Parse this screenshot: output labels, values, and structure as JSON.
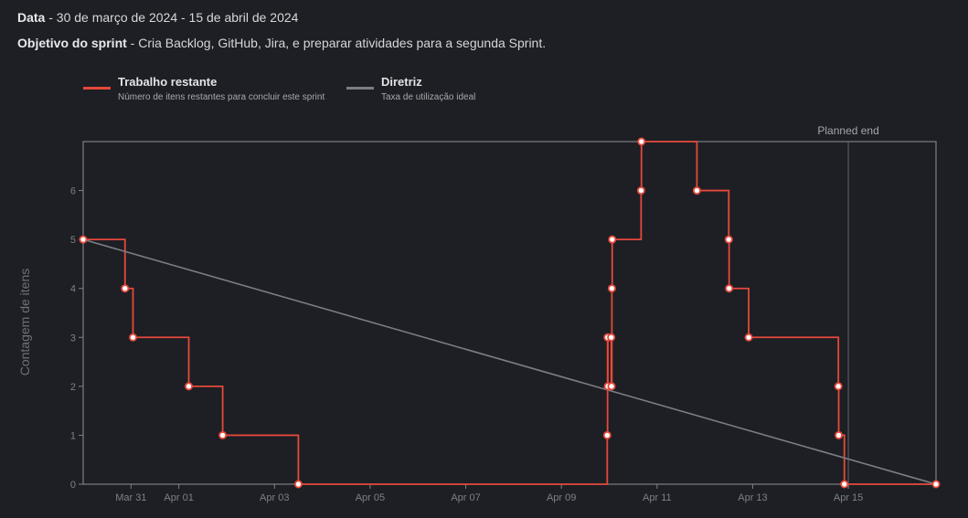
{
  "header": {
    "date_label": "Data",
    "date_value": " - 30 de março de 2024 - 15 de abril de 2024",
    "goal_label": "Objetivo do sprint",
    "goal_value": " - Cria Backlog, GitHub, Jira, e preparar atividades para a segunda Sprint."
  },
  "legend": [
    {
      "title": "Trabalho restante",
      "description": "Número de itens restantes para concluir este sprint",
      "color": "#e5483b"
    },
    {
      "title": "Diretriz",
      "description": "Taxa de utilização ideal",
      "color": "#7b7e82"
    }
  ],
  "chart_data": {
    "type": "line",
    "ylabel": "Contagem de itens",
    "ylim": [
      0,
      7
    ],
    "xlim": [
      "2024-03-30",
      "2024-04-16T20:00"
    ],
    "y_ticks": [
      0,
      1,
      2,
      3,
      4,
      5,
      6
    ],
    "x_ticks": [
      {
        "date": "2024-03-31",
        "label": "Mar 31"
      },
      {
        "date": "2024-04-01",
        "label": "Apr 01"
      },
      {
        "date": "2024-04-03",
        "label": "Apr 03"
      },
      {
        "date": "2024-04-05",
        "label": "Apr 05"
      },
      {
        "date": "2024-04-07",
        "label": "Apr 07"
      },
      {
        "date": "2024-04-09",
        "label": "Apr 09"
      },
      {
        "date": "2024-04-11",
        "label": "Apr 11"
      },
      {
        "date": "2024-04-13",
        "label": "Apr 13"
      },
      {
        "date": "2024-04-15",
        "label": "Apr 15"
      }
    ],
    "series": [
      {
        "name": "Trabalho restante",
        "style": "step",
        "color": "#e5483b",
        "points": [
          {
            "x": "2024-03-30T00:00",
            "y": 5
          },
          {
            "x": "2024-03-30T21:00",
            "y": 4
          },
          {
            "x": "2024-03-31T01:00",
            "y": 3
          },
          {
            "x": "2024-04-01T05:00",
            "y": 2
          },
          {
            "x": "2024-04-01T22:00",
            "y": 1
          },
          {
            "x": "2024-04-03T12:00",
            "y": 0
          },
          {
            "x": "2024-04-09T23:00",
            "y": 1
          },
          {
            "x": "2024-04-09T23:10",
            "y": 3
          },
          {
            "x": "2024-04-09T23:20",
            "y": 2
          },
          {
            "x": "2024-04-10T01:00",
            "y": 3
          },
          {
            "x": "2024-04-10T01:10",
            "y": 2
          },
          {
            "x": "2024-04-10T01:20",
            "y": 4
          },
          {
            "x": "2024-04-10T01:30",
            "y": 5
          },
          {
            "x": "2024-04-10T16:00",
            "y": 6
          },
          {
            "x": "2024-04-10T16:10",
            "y": 7
          },
          {
            "x": "2024-04-11T20:00",
            "y": 6
          },
          {
            "x": "2024-04-12T12:00",
            "y": 5
          },
          {
            "x": "2024-04-12T12:10",
            "y": 4
          },
          {
            "x": "2024-04-12T22:00",
            "y": 3
          },
          {
            "x": "2024-04-14T19:00",
            "y": 2
          },
          {
            "x": "2024-04-14T19:10",
            "y": 1
          },
          {
            "x": "2024-04-14T22:00",
            "y": 0
          },
          {
            "x": "2024-04-16T20:00",
            "y": 0
          }
        ]
      },
      {
        "name": "Diretriz",
        "style": "line",
        "color": "#7b7e82",
        "points": [
          {
            "x": "2024-03-30T00:00",
            "y": 5
          },
          {
            "x": "2024-04-16T20:00",
            "y": 0
          }
        ]
      }
    ],
    "annotations": [
      {
        "x": "2024-04-15",
        "label": "Planned end"
      }
    ],
    "colors": {
      "frame": "#7c7f84",
      "tick": "#7d8086",
      "planned_end": "#5d6472"
    }
  }
}
